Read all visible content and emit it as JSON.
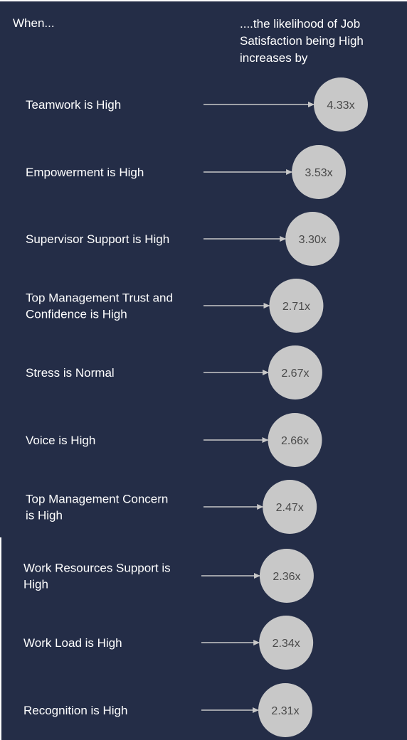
{
  "header": {
    "left": "When...",
    "right": "....the likelihood of Job Satisfaction being High increases by"
  },
  "colors": {
    "background": "#242d47",
    "bubble": "#c8c8c8",
    "arrow": "#c8c8c8",
    "text": "#ffffff",
    "bubble_text": "#4a4a4a"
  },
  "chart_data": {
    "type": "bubble",
    "title": "",
    "xlabel": "",
    "ylabel": "",
    "categories": [
      "Teamwork is High",
      "Empowerment is High",
      "Supervisor Support is High",
      "Top Management Trust and Confidence is High",
      "Stress is Normal",
      "Voice is High",
      "Top Management Concern is High",
      "Work Resources Support is High",
      "Work Load is High",
      "Recognition is High"
    ],
    "category_lines": [
      [
        "Teamwork is High"
      ],
      [
        "Empowerment is High"
      ],
      [
        "Supervisor Support is High"
      ],
      [
        "Top Management Trust and",
        "Confidence is High"
      ],
      [
        "Stress is Normal"
      ],
      [
        "Voice is High"
      ],
      [
        "Top Management Concern",
        "is High"
      ],
      [
        "Work Resources Support is",
        "High"
      ],
      [
        "Work Load is High"
      ],
      [
        "Recognition is High"
      ]
    ],
    "values": [
      4.33,
      3.53,
      3.3,
      2.71,
      2.67,
      2.66,
      2.47,
      2.36,
      2.34,
      2.31
    ],
    "value_labels": [
      "4.33x",
      "3.53x",
      "3.30x",
      "2.71x",
      "2.67x",
      "2.66x",
      "2.47x",
      "2.36x",
      "2.34x",
      "2.31x"
    ]
  }
}
